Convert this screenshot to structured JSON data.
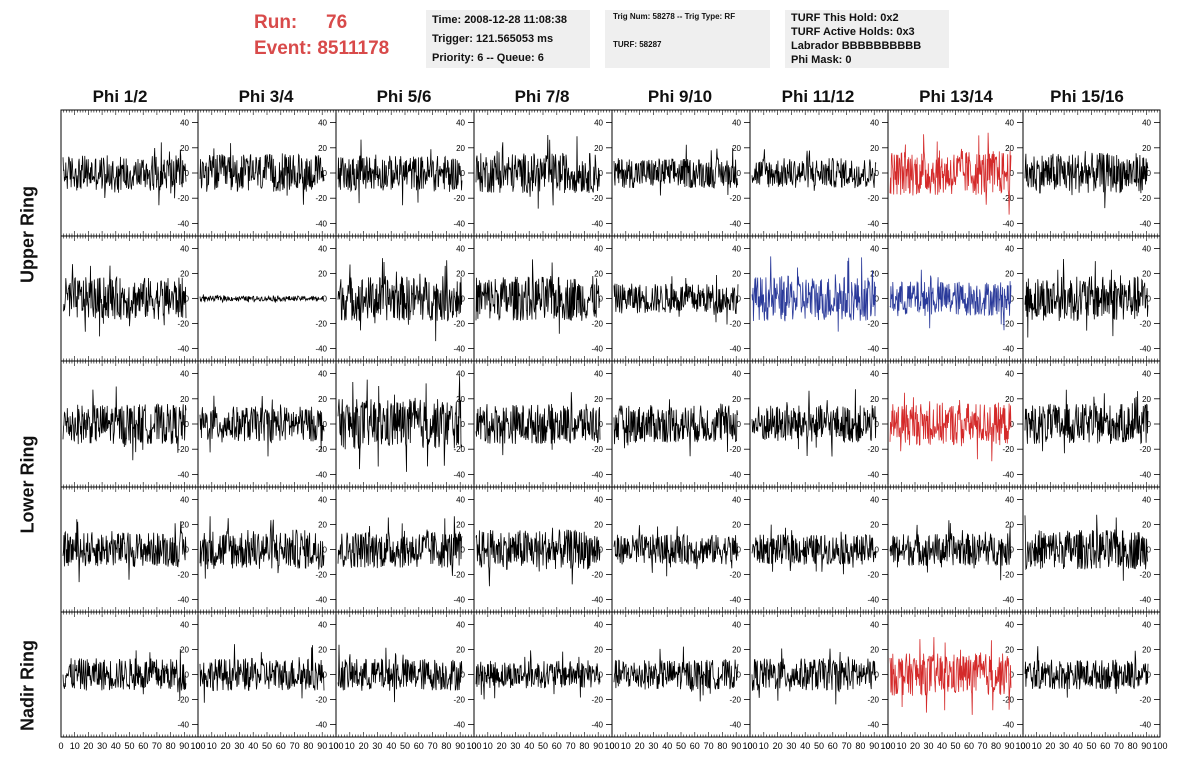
{
  "header": {
    "run_label": "Run:",
    "run_value": "76",
    "event_label": "Event:",
    "event_value": "8511178",
    "time": "Time: 2008-12-28 11:08:38",
    "trigger": "Trigger: 121.565053 ms",
    "priority": "Priority: 6 -- Queue: 6",
    "trig_num": "Trig Num: 58278 -- Trig Type: RF",
    "turf": "TURF: 58287",
    "turf_this_hold": "TURF This Hold: 0x2",
    "turf_active_holds": "TURF Active Holds: 0x3",
    "labrador": "Labrador BBBBBBBBBB",
    "phi_mask": "Phi Mask: 0"
  },
  "columns": [
    "Phi 1/2",
    "Phi 3/4",
    "Phi 5/6",
    "Phi 7/8",
    "Phi 9/10",
    "Phi 11/12",
    "Phi 13/14",
    "Phi 15/16"
  ],
  "rings": [
    "Upper Ring",
    "Lower Ring",
    "Nadir Ring"
  ],
  "y_ticks": [
    "40",
    "20",
    "0",
    "-20",
    "-40"
  ],
  "x_ticks": [
    "0",
    "10",
    "20",
    "30",
    "40",
    "50",
    "60",
    "70",
    "80",
    "90",
    "100"
  ],
  "colors": {
    "normal": "#000000",
    "red": "#d42a2a",
    "blue": "#2a3a9a",
    "title": "#d84a4a"
  },
  "chart_data": {
    "type": "line",
    "xlim": [
      0,
      100
    ],
    "ylim": [
      -50,
      50
    ],
    "grid_rows": 5,
    "grid_cols": 8,
    "panel_colors": [
      [
        "normal",
        "normal",
        "normal",
        "normal",
        "normal",
        "normal",
        "red",
        "normal"
      ],
      [
        "normal",
        "normal",
        "normal",
        "normal",
        "normal",
        "blue",
        "blue",
        "normal"
      ],
      [
        "normal",
        "normal",
        "normal",
        "normal",
        "normal",
        "normal",
        "red",
        "normal"
      ],
      [
        "normal",
        "normal",
        "normal",
        "normal",
        "normal",
        "normal",
        "normal",
        "normal"
      ],
      [
        "normal",
        "normal",
        "normal",
        "normal",
        "normal",
        "normal",
        "red",
        "normal"
      ]
    ],
    "panel_amplitude": [
      [
        14,
        15,
        14,
        16,
        12,
        12,
        18,
        16
      ],
      [
        17,
        2,
        18,
        18,
        12,
        18,
        14,
        18
      ],
      [
        16,
        14,
        20,
        16,
        15,
        15,
        17,
        16
      ],
      [
        14,
        16,
        15,
        16,
        12,
        12,
        13,
        16
      ],
      [
        13,
        13,
        13,
        11,
        12,
        13,
        17,
        12
      ]
    ]
  }
}
